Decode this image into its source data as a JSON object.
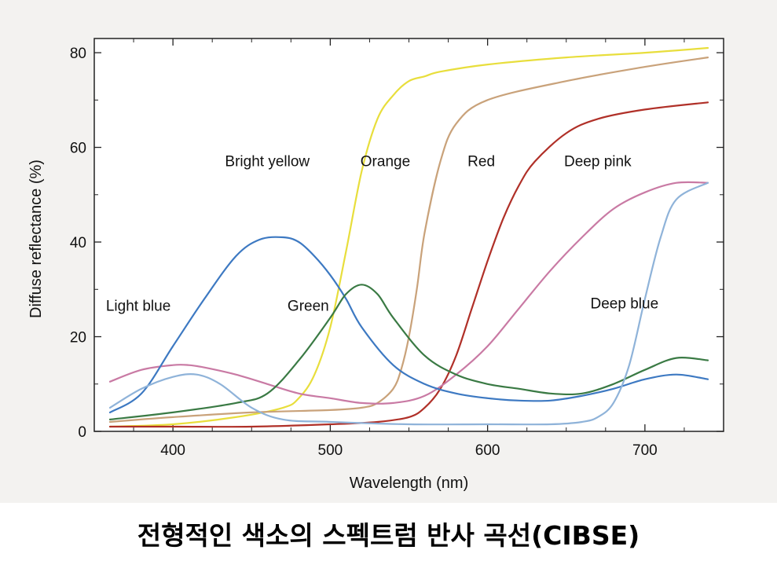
{
  "caption": "전형적인 색소의 스펙트럼 반사 곡선(CIBSE)",
  "colors": {
    "background": "#f3f2f0",
    "frame": "#ffffff",
    "axis": "#222222",
    "text": "#111111"
  },
  "chart_data": {
    "type": "line",
    "title": "",
    "xlabel": "Wavelength (nm)",
    "ylabel": "Diffuse reflectance (%)",
    "xlim": [
      350,
      750
    ],
    "ylim": [
      0,
      83
    ],
    "xticks": [
      400,
      500,
      600,
      700
    ],
    "yticks": [
      0,
      20,
      40,
      60,
      80
    ],
    "x_minor_step": 25,
    "y_minor_step": 10,
    "grid": false,
    "legend": "inline",
    "labels": [
      {
        "text": "Bright yellow",
        "x": 460,
        "y": 56
      },
      {
        "text": "Orange",
        "x": 535,
        "y": 56
      },
      {
        "text": "Red",
        "x": 596,
        "y": 56
      },
      {
        "text": "Deep pink",
        "x": 670,
        "y": 56
      },
      {
        "text": "Light blue",
        "x": 378,
        "y": 25.5
      },
      {
        "text": "Green",
        "x": 486,
        "y": 25.5
      },
      {
        "text": "Deep blue",
        "x": 687,
        "y": 26
      }
    ],
    "series": [
      {
        "name": "Bright yellow",
        "color": "#e8de3c",
        "x": [
          360,
          400,
          440,
          470,
          480,
          490,
          500,
          510,
          520,
          530,
          540,
          550,
          560,
          570,
          600,
          650,
          700,
          740
        ],
        "y": [
          1,
          1.5,
          3,
          5,
          7,
          12,
          22,
          38,
          55,
          66,
          71,
          74,
          75,
          76,
          77.5,
          79,
          80,
          81
        ]
      },
      {
        "name": "Orange",
        "color": "#c9a27a",
        "x": [
          360,
          400,
          450,
          500,
          520,
          530,
          540,
          545,
          550,
          555,
          560,
          570,
          580,
          600,
          650,
          700,
          740
        ],
        "y": [
          2,
          3,
          4,
          4.5,
          5,
          6,
          9,
          13,
          20,
          30,
          42,
          57,
          65,
          70,
          74,
          77,
          79
        ]
      },
      {
        "name": "Red",
        "color": "#b03028",
        "x": [
          360,
          400,
          450,
          500,
          530,
          550,
          560,
          570,
          580,
          590,
          600,
          610,
          620,
          630,
          650,
          670,
          700,
          740
        ],
        "y": [
          1,
          1,
          1,
          1.5,
          2,
          3,
          5,
          9,
          16,
          26,
          36,
          45,
          52,
          57,
          63,
          66,
          68,
          69.5
        ]
      },
      {
        "name": "Deep pink",
        "color": "#c97aa4",
        "x": [
          360,
          380,
          400,
          410,
          420,
          440,
          460,
          480,
          500,
          520,
          540,
          560,
          580,
          600,
          620,
          640,
          660,
          680,
          700,
          720,
          740
        ],
        "y": [
          10.5,
          13,
          14,
          14,
          13.5,
          12,
          10,
          8,
          7,
          6,
          6,
          7.5,
          12,
          18,
          26,
          34,
          41,
          47,
          50.5,
          52.5,
          52.5
        ]
      },
      {
        "name": "Light blue",
        "color": "#3d79c2",
        "x": [
          360,
          380,
          400,
          420,
          440,
          455,
          470,
          480,
          490,
          500,
          510,
          520,
          540,
          560,
          580,
          600,
          620,
          640,
          660,
          680,
          700,
          720,
          740
        ],
        "y": [
          4,
          8,
          18,
          28,
          37,
          40.5,
          41,
          40,
          37,
          33,
          28,
          22,
          14,
          10,
          8,
          7,
          6.5,
          6.5,
          7.5,
          9,
          11,
          12,
          11
        ]
      },
      {
        "name": "Green",
        "color": "#3a7a44",
        "x": [
          360,
          400,
          440,
          460,
          480,
          500,
          510,
          520,
          530,
          540,
          560,
          580,
          600,
          620,
          640,
          660,
          680,
          700,
          720,
          740
        ],
        "y": [
          2.5,
          4,
          6,
          8,
          15,
          24,
          29,
          31,
          29,
          24,
          16,
          12,
          10,
          9,
          8,
          8,
          10,
          13,
          15.5,
          15
        ]
      },
      {
        "name": "Deep blue",
        "color": "#8fb3d9",
        "x": [
          360,
          380,
          400,
          415,
          430,
          450,
          470,
          500,
          550,
          600,
          640,
          660,
          670,
          680,
          690,
          700,
          710,
          720,
          740
        ],
        "y": [
          5,
          9,
          11.5,
          12,
          10,
          5,
          2.5,
          2,
          1.5,
          1.5,
          1.5,
          2,
          3,
          6,
          14,
          28,
          41,
          49,
          52.5
        ]
      }
    ]
  }
}
